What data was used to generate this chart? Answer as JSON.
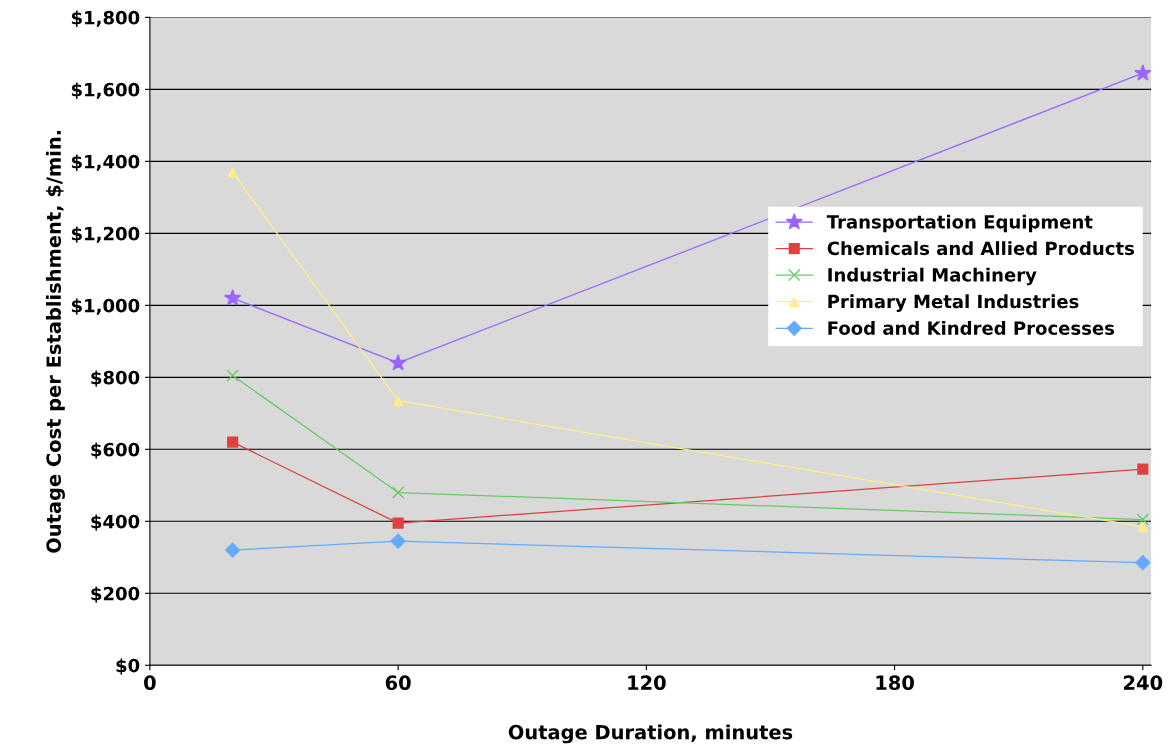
{
  "chart_data": {
    "type": "line",
    "xlabel": "Outage Duration, minutes",
    "ylabel": "Outage Cost per Establishment, $/min.",
    "x": [
      20,
      60,
      240
    ],
    "series": [
      {
        "name": "Transportation Equipment",
        "color": "#9966ff",
        "marker": "star",
        "values": [
          1020,
          840,
          1645
        ]
      },
      {
        "name": "Chemicals and Allied Products",
        "color": "#e04040",
        "marker": "square",
        "values": [
          620,
          395,
          545
        ]
      },
      {
        "name": "Industrial Machinery",
        "color": "#66cc66",
        "marker": "cross",
        "values": [
          805,
          480,
          405
        ]
      },
      {
        "name": "Primary Metal Industries",
        "color": "#ffee88",
        "marker": "triangle",
        "values": [
          1370,
          735,
          385
        ]
      },
      {
        "name": "Food and Kindred Processes",
        "color": "#66aaff",
        "marker": "diamond",
        "values": [
          320,
          345,
          285
        ]
      }
    ],
    "xlim": [
      0,
      242
    ],
    "xticks": [
      0,
      60,
      120,
      180,
      240
    ],
    "ylim": [
      0,
      1800
    ],
    "yticks": [
      {
        "value": 0,
        "label": "$0"
      },
      {
        "value": 200,
        "label": "$200"
      },
      {
        "value": 400,
        "label": "$400"
      },
      {
        "value": 600,
        "label": "$600"
      },
      {
        "value": 800,
        "label": "$800"
      },
      {
        "value": 1000,
        "label": "$1,000"
      },
      {
        "value": 1200,
        "label": "$1,200"
      },
      {
        "value": 1400,
        "label": "$1,400"
      },
      {
        "value": 1600,
        "label": "$1,600"
      },
      {
        "value": 1800,
        "label": "$1,800"
      }
    ],
    "grid": "y",
    "legend": "center right",
    "line_style": "solid"
  }
}
